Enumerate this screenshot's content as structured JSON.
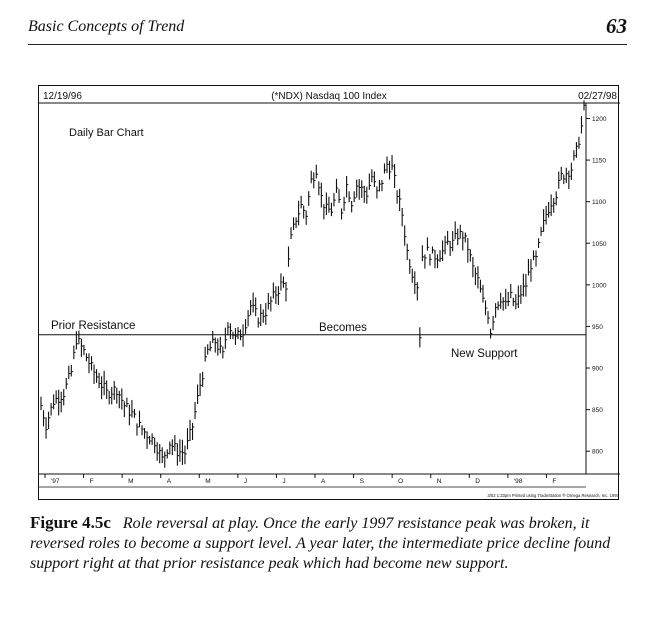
{
  "header": {
    "running_title": "Basic Concepts of Trend",
    "page_number": "63"
  },
  "figure": {
    "label": "Figure 4.5c",
    "caption": "Role reversal at play. Once the early 1997 resistance peak was broken, it reversed roles to become a support level. A year later, the intermediate price decline found support right at that prior resistance peak which had become new support."
  },
  "chart_data": {
    "type": "bar",
    "subtype": "daily-price-bar",
    "title": "(*NDX) Nasdaq 100 Index",
    "date_start": "12/19/96",
    "date_end": "02/27/98",
    "chart_label": "Daily Bar Chart",
    "annotations": {
      "prior_resistance": "Prior Resistance",
      "becomes": "Becomes",
      "new_support": "New Support"
    },
    "footer_note": "3/02 1:33pm Printed using TradeStation ® Omega Research, Inc. 1997",
    "support_level": 940,
    "ylim": [
      775,
      1215
    ],
    "y_ticks": [
      800,
      850,
      900,
      950,
      1000,
      1050,
      1100,
      1150,
      1200
    ],
    "x_ticks": [
      "'97",
      "F",
      "M",
      "A",
      "M",
      "J",
      "J",
      "A",
      "S",
      "O",
      "N",
      "D",
      "'98",
      "F"
    ],
    "axis_position": "right",
    "grid": false,
    "series": [
      {
        "close_points": [
          [
            0,
            855
          ],
          [
            2,
            832
          ],
          [
            5,
            860
          ],
          [
            9,
            870
          ],
          [
            12,
            895
          ],
          [
            14,
            935
          ],
          [
            17,
            920
          ],
          [
            20,
            900
          ],
          [
            23,
            885
          ],
          [
            26,
            870
          ],
          [
            30,
            875
          ],
          [
            33,
            855
          ],
          [
            36,
            845
          ],
          [
            39,
            830
          ],
          [
            42,
            820
          ],
          [
            45,
            812
          ],
          [
            48,
            790
          ],
          [
            51,
            810
          ],
          [
            54,
            800
          ],
          [
            57,
            798
          ],
          [
            60,
            830
          ],
          [
            63,
            880
          ],
          [
            66,
            920
          ],
          [
            69,
            932
          ],
          [
            72,
            915
          ],
          [
            74,
            955
          ],
          [
            77,
            935
          ],
          [
            80,
            945
          ],
          [
            83,
            975
          ],
          [
            86,
            960
          ],
          [
            89,
            968
          ],
          [
            92,
            985
          ],
          [
            95,
            1000
          ],
          [
            97,
            1000
          ],
          [
            99,
            1055
          ],
          [
            101,
            1080
          ],
          [
            103,
            1095
          ],
          [
            105,
            1085
          ],
          [
            107,
            1125
          ],
          [
            109,
            1140
          ],
          [
            111,
            1105
          ],
          [
            113,
            1090
          ],
          [
            115,
            1090
          ],
          [
            117,
            1110
          ],
          [
            119,
            1090
          ],
          [
            121,
            1120
          ],
          [
            123,
            1100
          ],
          [
            125,
            1120
          ],
          [
            127,
            1115
          ],
          [
            129,
            1110
          ],
          [
            131,
            1130
          ],
          [
            133,
            1110
          ],
          [
            135,
            1125
          ],
          [
            137,
            1145
          ],
          [
            139,
            1140
          ],
          [
            141,
            1110
          ],
          [
            143,
            1085
          ],
          [
            145,
            1040
          ],
          [
            147,
            1015
          ],
          [
            149,
            1000
          ],
          [
            150,
            940
          ],
          [
            151,
            1035
          ],
          [
            153,
            1040
          ],
          [
            155,
            1035
          ],
          [
            157,
            1035
          ],
          [
            159,
            1040
          ],
          [
            161,
            1050
          ],
          [
            163,
            1050
          ],
          [
            165,
            1060
          ],
          [
            167,
            1060
          ],
          [
            169,
            1045
          ],
          [
            171,
            1020
          ],
          [
            173,
            1005
          ],
          [
            175,
            980
          ],
          [
            177,
            965
          ],
          [
            178,
            945
          ],
          [
            180,
            975
          ],
          [
            182,
            985
          ],
          [
            184,
            975
          ],
          [
            186,
            985
          ],
          [
            188,
            975
          ],
          [
            190,
            990
          ],
          [
            192,
            1000
          ],
          [
            194,
            1025
          ],
          [
            196,
            1030
          ],
          [
            198,
            1060
          ],
          [
            200,
            1085
          ],
          [
            202,
            1100
          ],
          [
            204,
            1110
          ],
          [
            206,
            1130
          ],
          [
            208,
            1135
          ],
          [
            210,
            1140
          ],
          [
            212,
            1160
          ],
          [
            214,
            1190
          ],
          [
            215,
            1210
          ]
        ]
      }
    ]
  }
}
